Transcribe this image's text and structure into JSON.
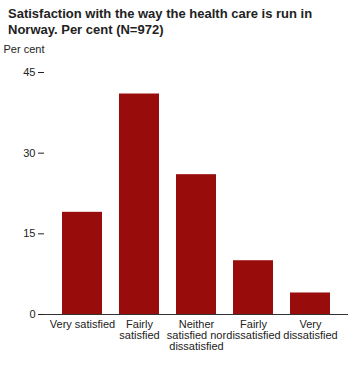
{
  "chart_data": {
    "type": "bar",
    "title": "Satisfaction with the way the health care is run in Norway. Per cent (N=972)",
    "y_label": "Per cent",
    "categories": [
      "Very satisfied",
      "Fairly satisfied",
      "Neither satisfied nor dissatisfied",
      "Fairly dissatisfied",
      "Very dissatisfied"
    ],
    "values": [
      19,
      41,
      26,
      10,
      4
    ],
    "color": "#990c0c",
    "ylim": [
      0,
      45
    ],
    "yticks": [
      0,
      15,
      30,
      45
    ],
    "grid": false
  }
}
